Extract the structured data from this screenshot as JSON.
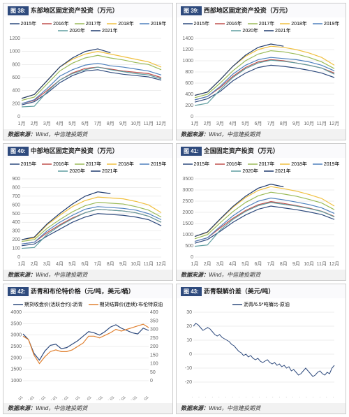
{
  "source_label": "数据来源：",
  "source_value": "Wind，中信建投期货",
  "year_colors": {
    "2015": "#2e4a7d",
    "2016": "#c0504d",
    "2017": "#9bbb59",
    "2018": "#f0c040",
    "2019": "#4f81bd",
    "2020": "#5f9ea0",
    "2021": "#1f3a6d"
  },
  "legend_labels": {
    "2015": "2015年",
    "2016": "2016年",
    "2017": "2017年",
    "2018": "2018年",
    "2019": "2019年",
    "2020": "2020年",
    "2021": "2021年"
  },
  "months": [
    "1月",
    "2月",
    "3月",
    "4月",
    "5月",
    "6月",
    "7月",
    "8月",
    "9月",
    "10月",
    "11月",
    "12月"
  ],
  "charts": [
    {
      "id": "c38",
      "num": "图 38:",
      "title": "东部地区固定资产投资（万元）",
      "type": "line",
      "ylim": [
        0,
        1200
      ],
      "ytick_step": 200,
      "series": {
        "2015": [
          180,
          230,
          360,
          520,
          630,
          700,
          720,
          680,
          650,
          630,
          610,
          560
        ],
        "2016": [
          200,
          250,
          400,
          560,
          670,
          740,
          760,
          730,
          700,
          680,
          660,
          600
        ],
        "2017": [
          250,
          300,
          500,
          700,
          820,
          900,
          940,
          900,
          870,
          830,
          800,
          720
        ],
        "2018": [
          280,
          340,
          550,
          760,
          880,
          960,
          1000,
          960,
          920,
          880,
          840,
          760
        ],
        "2019": [
          200,
          260,
          430,
          620,
          720,
          790,
          820,
          780,
          760,
          730,
          700,
          640
        ],
        "2020": [
          150,
          160,
          380,
          560,
          660,
          720,
          760,
          720,
          690,
          660,
          640,
          580
        ],
        "2021": [
          280,
          340,
          550,
          760,
          900,
          1000,
          1040,
          980,
          null,
          null,
          null,
          null
        ]
      }
    },
    {
      "id": "c39",
      "num": "图 39:",
      "title": "西部地区固定资产投资（万元）",
      "type": "line",
      "ylim": [
        0,
        1400
      ],
      "ytick_step": 200,
      "series": {
        "2015": [
          260,
          320,
          450,
          640,
          780,
          880,
          920,
          900,
          870,
          830,
          780,
          700
        ],
        "2016": [
          300,
          360,
          520,
          720,
          880,
          980,
          1020,
          1000,
          960,
          920,
          870,
          780
        ],
        "2017": [
          340,
          400,
          600,
          820,
          1000,
          1120,
          1180,
          1160,
          1120,
          1060,
          980,
          860
        ],
        "2018": [
          380,
          440,
          660,
          900,
          1080,
          1200,
          1260,
          1240,
          1200,
          1140,
          1060,
          920
        ],
        "2019": [
          300,
          360,
          540,
          760,
          920,
          1020,
          1060,
          1040,
          1020,
          980,
          920,
          820
        ],
        "2020": [
          200,
          240,
          480,
          700,
          860,
          960,
          1010,
          990,
          960,
          920,
          870,
          760
        ],
        "2021": [
          380,
          440,
          660,
          900,
          1100,
          1240,
          1300,
          1260,
          null,
          null,
          null,
          null
        ]
      }
    },
    {
      "id": "c40",
      "num": "图 40:",
      "title": "中部地区固定资产投资（万元）",
      "type": "line",
      "ylim": [
        0,
        900
      ],
      "ytick_step": 100,
      "series": {
        "2015": [
          130,
          150,
          240,
          320,
          400,
          460,
          500,
          490,
          480,
          460,
          430,
          360
        ],
        "2016": [
          150,
          170,
          280,
          370,
          450,
          510,
          550,
          540,
          530,
          510,
          470,
          400
        ],
        "2017": [
          180,
          200,
          330,
          430,
          520,
          590,
          630,
          620,
          610,
          580,
          540,
          460
        ],
        "2018": [
          200,
          220,
          370,
          480,
          580,
          650,
          690,
          680,
          670,
          640,
          600,
          510
        ],
        "2019": [
          150,
          170,
          300,
          400,
          480,
          550,
          580,
          570,
          560,
          540,
          500,
          430
        ],
        "2020": [
          100,
          110,
          260,
          360,
          440,
          510,
          550,
          540,
          530,
          510,
          470,
          400
        ],
        "2021": [
          200,
          230,
          380,
          500,
          610,
          700,
          750,
          730,
          null,
          null,
          null,
          null
        ]
      }
    },
    {
      "id": "c41",
      "num": "图 41:",
      "title": "全国固定资产投资（万元）",
      "type": "line",
      "ylim": [
        0,
        3500
      ],
      "ytick_step": 500,
      "series": {
        "2015": [
          620,
          780,
          1150,
          1550,
          1880,
          2140,
          2280,
          2200,
          2120,
          2020,
          1900,
          1680
        ],
        "2016": [
          700,
          860,
          1300,
          1730,
          2080,
          2340,
          2480,
          2400,
          2300,
          2190,
          2050,
          1820
        ],
        "2017": [
          820,
          1000,
          1530,
          2030,
          2440,
          2740,
          2900,
          2820,
          2720,
          2580,
          2420,
          2120
        ],
        "2018": [
          920,
          1100,
          1680,
          2220,
          2660,
          2980,
          3150,
          3060,
          2950,
          2800,
          2620,
          2280
        ],
        "2019": [
          700,
          860,
          1360,
          1840,
          2220,
          2500,
          2640,
          2560,
          2460,
          2350,
          2200,
          1950
        ],
        "2020": [
          480,
          540,
          1200,
          1680,
          2040,
          2300,
          2440,
          2360,
          2280,
          2170,
          2040,
          1800
        ],
        "2021": [
          920,
          1120,
          1700,
          2260,
          2720,
          3080,
          3260,
          3140,
          null,
          null,
          null,
          null
        ]
      }
    },
    {
      "id": "c42",
      "num": "图 42:",
      "title": "沥青和布伦特价格（元/吨，美元/桶）",
      "type": "dual-line",
      "ylim_left": [
        1000,
        4000
      ],
      "ytick_step_left": 500,
      "ylim_right": [
        0,
        400
      ],
      "ytick_step_right": 50,
      "xlabels": [
        "2020-01-01",
        "2020-03-01",
        "2020-05-01",
        "2020-07-01",
        "2020-09-01",
        "2020-11-01",
        "2021-01-01",
        "2021-03-01",
        "2021-05-01",
        "2021-07-01",
        "2021-09-01",
        "2021-11-01"
      ],
      "series": {
        "bitumen": {
          "label": "期货收盘价(活跃合约):沥青",
          "color": "#2e4a7d",
          "data": [
            3050,
            2800,
            2200,
            1900,
            2300,
            2550,
            2600,
            2400,
            2450,
            2600,
            2750,
            2950,
            3150,
            3100,
            3000,
            3150,
            3350,
            3450,
            3300,
            3200,
            3100,
            3050,
            3300,
            3200
          ]
        },
        "brent": {
          "label": "期货结算价(连续):布伦特原油",
          "color": "#e08030",
          "data": [
            260,
            240,
            150,
            100,
            140,
            170,
            180,
            170,
            170,
            180,
            200,
            220,
            260,
            260,
            250,
            265,
            280,
            300,
            290,
            300,
            310,
            320,
            330,
            310
          ]
        }
      }
    },
    {
      "id": "c43",
      "num": "图 43:",
      "title": "沥青裂解价差（美元/吨）",
      "type": "line-dense",
      "ylim": [
        -20,
        30
      ],
      "ytick_step": 10,
      "legend_label": "沥青/6.5*吨桶比-原油",
      "color": "#2e4a7d",
      "x_count": 22,
      "data": [
        20,
        22,
        21,
        19,
        17,
        18,
        19,
        18,
        16,
        14,
        13,
        14,
        12,
        11,
        10,
        9,
        7,
        6,
        4,
        2,
        1,
        -1,
        0,
        -2,
        -1,
        -3,
        -4,
        -3,
        -5,
        -6,
        -5,
        -4,
        -6,
        -7,
        -6,
        -8,
        -7,
        -9,
        -8,
        -10,
        -9,
        -12,
        -11,
        -13,
        -15,
        -14,
        -12,
        -10,
        -12,
        -14,
        -16,
        -15,
        -13,
        -12,
        -14,
        -15,
        -13,
        -14,
        -10,
        -8
      ]
    }
  ]
}
